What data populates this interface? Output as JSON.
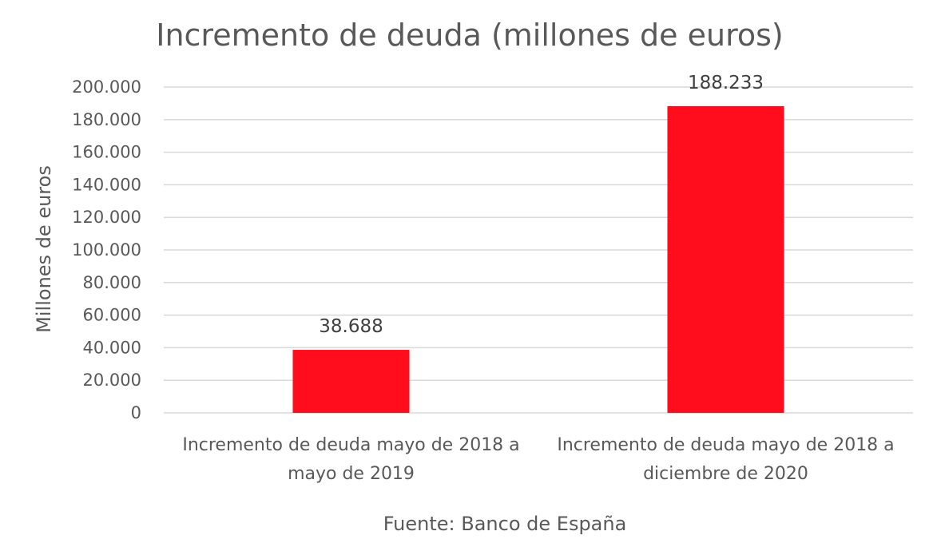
{
  "chart_data": {
    "type": "bar",
    "title": "Incremento de deuda (millones de euros)",
    "ylabel": "Millones de euros",
    "xlabel": "Fuente: Banco de España",
    "ylim": [
      0,
      200000
    ],
    "yticks": [
      0,
      20000,
      40000,
      60000,
      80000,
      100000,
      120000,
      140000,
      160000,
      180000,
      200000
    ],
    "ytick_labels": [
      "0",
      "20.000",
      "40.000",
      "60.000",
      "80.000",
      "100.000",
      "120.000",
      "140.000",
      "160.000",
      "180.000",
      "200.000"
    ],
    "categories": [
      [
        "Incremento de deuda mayo de 2018 a",
        "mayo de 2019"
      ],
      [
        "Incremento de deuda mayo de 2018 a",
        "diciembre de 2020"
      ]
    ],
    "values": [
      38688,
      188233
    ],
    "data_labels": [
      "38.688",
      "188.233"
    ],
    "bar_color": "#ff0d1c",
    "grid": true,
    "legend": "none"
  }
}
